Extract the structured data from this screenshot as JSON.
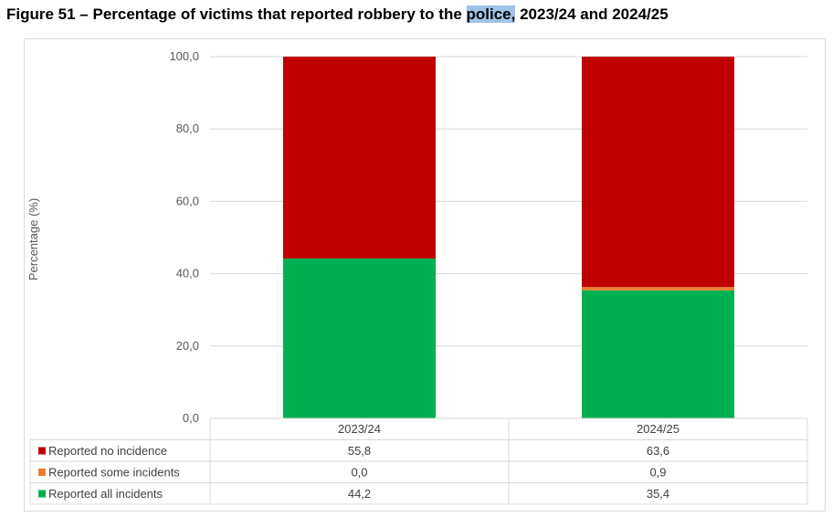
{
  "figure": {
    "title_prefix": "Figure 51 – Percentage of victims that reported robbery to the ",
    "title_highlight": "police,",
    "title_suffix": " 2023/24 and 2024/25"
  },
  "chart_data": {
    "type": "bar",
    "stacked": true,
    "title": "Figure 51 – Percentage of victims that reported robbery to the police, 2023/24 and 2024/25",
    "xlabel": "",
    "ylabel": "Percentage (%)",
    "ylim": [
      0,
      100
    ],
    "yticks": [
      "0,0",
      "20,0",
      "40,0",
      "60,0",
      "80,0",
      "100,0"
    ],
    "ytick_values": [
      0,
      20,
      40,
      60,
      80,
      100
    ],
    "categories": [
      "2023/24",
      "2024/25"
    ],
    "series": [
      {
        "name": "Reported all incidents",
        "values": [
          44.2,
          35.4
        ],
        "labels": [
          "44,2",
          "35,4"
        ],
        "color": "#00b050"
      },
      {
        "name": "Reported some incidents",
        "values": [
          0.0,
          0.9
        ],
        "labels": [
          "0,0",
          "0,9"
        ],
        "color": "#ed7d31"
      },
      {
        "name": "Reported no incidence",
        "values": [
          55.8,
          63.6
        ],
        "labels": [
          "55,8",
          "63,6"
        ],
        "color": "#c00000"
      }
    ],
    "data_table": true,
    "gridlines": true
  }
}
